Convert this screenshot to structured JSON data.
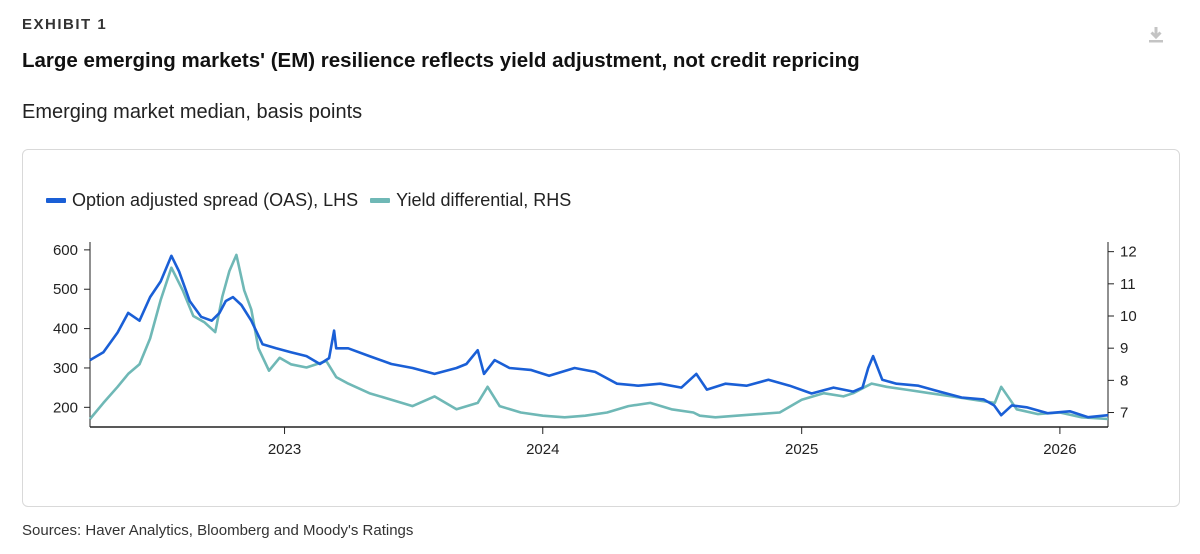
{
  "header": {
    "exhibit_label": "EXHIBIT 1",
    "title": "Large emerging markets' (EM) resilience reflects yield adjustment, not credit repricing",
    "subtitle": "Emerging market median, basis points",
    "download_icon": "download-icon"
  },
  "footer": {
    "source": "Sources: Haver Analytics, Bloomberg and Moody's Ratings"
  },
  "colors": {
    "oas": "#1a5fd6",
    "yield": "#6fb8b6",
    "axis": "#222222"
  },
  "chart_data": {
    "type": "line",
    "title": "",
    "xlabel": "",
    "ylabel_left": "",
    "ylabel_right": "",
    "x_range": [
      "2022-04-01",
      "2026-03-10"
    ],
    "x_ticks": [
      {
        "label": "2023",
        "date": "2023-01-01"
      },
      {
        "label": "2024",
        "date": "2024-01-01"
      },
      {
        "label": "2025",
        "date": "2025-01-01"
      },
      {
        "label": "2026",
        "date": "2026-01-01"
      }
    ],
    "y_left": {
      "min": 150,
      "max": 620,
      "ticks": [
        200,
        300,
        400,
        500,
        600
      ]
    },
    "y_right": {
      "min": 6.55,
      "max": 12.3,
      "ticks": [
        7,
        8,
        9,
        10,
        11,
        12
      ]
    },
    "grid": false,
    "legend_position": "top-left",
    "series": [
      {
        "name": "Option adjusted spread (OAS), LHS",
        "axis": "left",
        "color": "#1a5fd6",
        "x": [
          "2022-04-01",
          "2022-04-20",
          "2022-05-10",
          "2022-05-25",
          "2022-06-10",
          "2022-06-25",
          "2022-07-10",
          "2022-07-25",
          "2022-08-05",
          "2022-08-20",
          "2022-09-05",
          "2022-09-20",
          "2022-10-01",
          "2022-10-10",
          "2022-10-20",
          "2022-11-01",
          "2022-11-15",
          "2022-12-01",
          "2022-12-20",
          "2023-01-10",
          "2023-02-01",
          "2023-02-20",
          "2023-03-05",
          "2023-03-12",
          "2023-03-15",
          "2023-04-01",
          "2023-05-01",
          "2023-06-01",
          "2023-07-01",
          "2023-08-01",
          "2023-09-01",
          "2023-09-15",
          "2023-10-01",
          "2023-10-10",
          "2023-10-25",
          "2023-11-15",
          "2023-12-15",
          "2024-01-10",
          "2024-02-15",
          "2024-03-15",
          "2024-04-15",
          "2024-05-15",
          "2024-06-15",
          "2024-07-15",
          "2024-08-05",
          "2024-08-20",
          "2024-09-15",
          "2024-10-15",
          "2024-11-15",
          "2024-12-15",
          "2025-01-15",
          "2025-02-15",
          "2025-03-15",
          "2025-03-28",
          "2025-04-05",
          "2025-04-12",
          "2025-04-25",
          "2025-05-15",
          "2025-06-15",
          "2025-07-15",
          "2025-08-15",
          "2025-09-15",
          "2025-09-30",
          "2025-10-10",
          "2025-10-25",
          "2025-11-15",
          "2025-12-15",
          "2026-01-15",
          "2026-02-10",
          "2026-03-10"
        ],
        "values": [
          320,
          340,
          390,
          440,
          420,
          480,
          520,
          585,
          545,
          470,
          430,
          420,
          440,
          470,
          480,
          460,
          420,
          360,
          350,
          340,
          330,
          310,
          325,
          395,
          350,
          350,
          330,
          310,
          300,
          285,
          300,
          310,
          345,
          285,
          320,
          300,
          295,
          280,
          300,
          290,
          260,
          255,
          260,
          250,
          285,
          245,
          260,
          255,
          270,
          255,
          235,
          250,
          240,
          250,
          300,
          330,
          270,
          260,
          255,
          240,
          225,
          220,
          205,
          180,
          205,
          200,
          185,
          190,
          175,
          180
        ]
      },
      {
        "name": "Yield differential, RHS",
        "axis": "right",
        "color": "#6fb8b6",
        "x": [
          "2022-04-01",
          "2022-04-20",
          "2022-05-10",
          "2022-05-25",
          "2022-06-10",
          "2022-06-25",
          "2022-07-10",
          "2022-07-25",
          "2022-08-10",
          "2022-08-25",
          "2022-09-10",
          "2022-09-25",
          "2022-10-05",
          "2022-10-15",
          "2022-10-25",
          "2022-11-05",
          "2022-11-15",
          "2022-11-25",
          "2022-12-10",
          "2022-12-25",
          "2023-01-10",
          "2023-02-01",
          "2023-03-01",
          "2023-03-15",
          "2023-04-01",
          "2023-05-01",
          "2023-06-01",
          "2023-07-01",
          "2023-08-01",
          "2023-09-01",
          "2023-10-01",
          "2023-10-15",
          "2023-11-01",
          "2023-12-01",
          "2024-01-01",
          "2024-02-01",
          "2024-03-01",
          "2024-04-01",
          "2024-05-01",
          "2024-06-01",
          "2024-07-01",
          "2024-08-01",
          "2024-08-10",
          "2024-09-01",
          "2024-10-01",
          "2024-11-01",
          "2024-12-01",
          "2025-01-01",
          "2025-02-01",
          "2025-03-01",
          "2025-03-15",
          "2025-04-01",
          "2025-04-10",
          "2025-05-01",
          "2025-06-01",
          "2025-07-01",
          "2025-08-01",
          "2025-09-01",
          "2025-10-01",
          "2025-10-10",
          "2025-11-01",
          "2025-12-01",
          "2026-01-01",
          "2026-02-01",
          "2026-03-10"
        ],
        "values": [
          6.8,
          7.3,
          7.8,
          8.2,
          8.5,
          9.3,
          10.5,
          11.5,
          10.8,
          10.0,
          9.8,
          9.5,
          10.6,
          11.4,
          11.9,
          10.8,
          10.2,
          9.0,
          8.3,
          8.7,
          8.5,
          8.4,
          8.6,
          8.1,
          7.9,
          7.6,
          7.4,
          7.2,
          7.5,
          7.1,
          7.3,
          7.8,
          7.2,
          7.0,
          6.9,
          6.85,
          6.9,
          7.0,
          7.2,
          7.3,
          7.1,
          7.0,
          6.9,
          6.85,
          6.9,
          6.95,
          7.0,
          7.4,
          7.6,
          7.5,
          7.6,
          7.8,
          7.9,
          7.8,
          7.7,
          7.6,
          7.5,
          7.4,
          7.3,
          7.8,
          7.1,
          6.95,
          7.0,
          6.85,
          6.8
        ]
      }
    ]
  }
}
